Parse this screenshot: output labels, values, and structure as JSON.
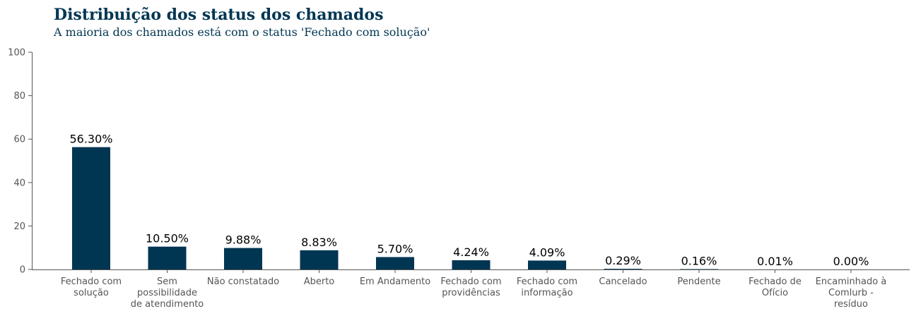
{
  "colors": {
    "bar": "#003652",
    "title": "#003652",
    "axis": "#555555"
  },
  "chart_data": {
    "type": "bar",
    "title": "Distribuição dos status dos chamados",
    "subtitle": "A maioria dos chamados está com o status 'Fechado com solução'",
    "xlabel": "",
    "ylabel": "",
    "ylim": [
      0,
      100
    ],
    "yticks": [
      0,
      20,
      40,
      60,
      80,
      100
    ],
    "grid": false,
    "categories": [
      [
        "Fechado com",
        "solução"
      ],
      [
        "Sem",
        "possibilidade",
        "de atendimento"
      ],
      [
        "Não constatado"
      ],
      [
        "Aberto"
      ],
      [
        "Em Andamento"
      ],
      [
        "Fechado com",
        "providências"
      ],
      [
        "Fechado com",
        "informação"
      ],
      [
        "Cancelado"
      ],
      [
        "Pendente"
      ],
      [
        "Fechado de",
        "Ofício"
      ],
      [
        "Encaminhado à",
        "Comlurb -",
        "resíduo"
      ]
    ],
    "values": [
      56.3,
      10.5,
      9.88,
      8.83,
      5.7,
      4.24,
      4.09,
      0.29,
      0.16,
      0.01,
      0.0
    ],
    "data_labels": [
      "56.30%",
      "10.50%",
      "9.88%",
      "8.83%",
      "5.70%",
      "4.24%",
      "4.09%",
      "0.29%",
      "0.16%",
      "0.01%",
      "0.00%"
    ]
  }
}
